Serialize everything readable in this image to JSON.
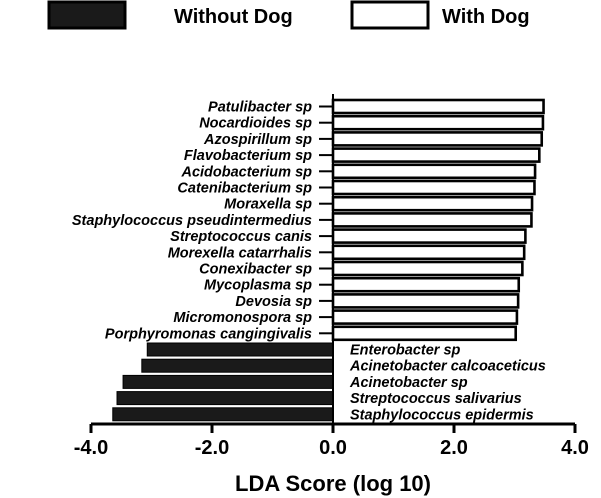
{
  "chart_data": {
    "type": "bar",
    "orientation": "horizontal",
    "xlabel": "LDA Score (log 10)",
    "xlim": [
      -4.0,
      4.0
    ],
    "xticks": [
      -4.0,
      -2.0,
      0.0,
      2.0,
      4.0
    ],
    "xtick_labels": [
      "-4.0",
      "-2.0",
      "0.0",
      "2.0",
      "4.0"
    ],
    "legend_position": "top",
    "series": [
      {
        "name": "Without Dog",
        "color": "#1a1a1a"
      },
      {
        "name": "With Dog",
        "color": "#ffffff"
      }
    ],
    "bars": [
      {
        "label": "Patulibacter sp",
        "value": 3.48,
        "series": "With Dog"
      },
      {
        "label": "Nocardioides sp",
        "value": 3.47,
        "series": "With Dog"
      },
      {
        "label": "Azospirillum sp",
        "value": 3.45,
        "series": "With Dog"
      },
      {
        "label": "Flavobacterium sp",
        "value": 3.41,
        "series": "With Dog"
      },
      {
        "label": "Acidobacterium sp",
        "value": 3.34,
        "series": "With Dog"
      },
      {
        "label": "Catenibacterium sp",
        "value": 3.33,
        "series": "With Dog"
      },
      {
        "label": "Moraxella sp",
        "value": 3.29,
        "series": "With Dog"
      },
      {
        "label": "Staphylococcus pseudintermedius",
        "value": 3.28,
        "series": "With Dog"
      },
      {
        "label": "Streptococcus canis",
        "value": 3.18,
        "series": "With Dog"
      },
      {
        "label": "Morexella catarrhalis",
        "value": 3.16,
        "series": "With Dog"
      },
      {
        "label": "Conexibacter sp",
        "value": 3.13,
        "series": "With Dog"
      },
      {
        "label": "Mycoplasma sp",
        "value": 3.07,
        "series": "With Dog"
      },
      {
        "label": "Devosia sp",
        "value": 3.06,
        "series": "With Dog"
      },
      {
        "label": "Micromonospora sp",
        "value": 3.04,
        "series": "With Dog"
      },
      {
        "label": "Porphyromonas cangingivalis",
        "value": 3.02,
        "series": "With Dog"
      },
      {
        "label": "Enterobacter sp",
        "value": -3.07,
        "series": "Without Dog"
      },
      {
        "label": "Acinetobacter calcoaceticus",
        "value": -3.16,
        "series": "Without Dog"
      },
      {
        "label": "Acinetobacter sp",
        "value": -3.47,
        "series": "Without Dog"
      },
      {
        "label": "Streptococcus salivarius",
        "value": -3.57,
        "series": "Without Dog"
      },
      {
        "label": "Staphylococcus epidermis",
        "value": -3.64,
        "series": "Without Dog"
      }
    ]
  }
}
